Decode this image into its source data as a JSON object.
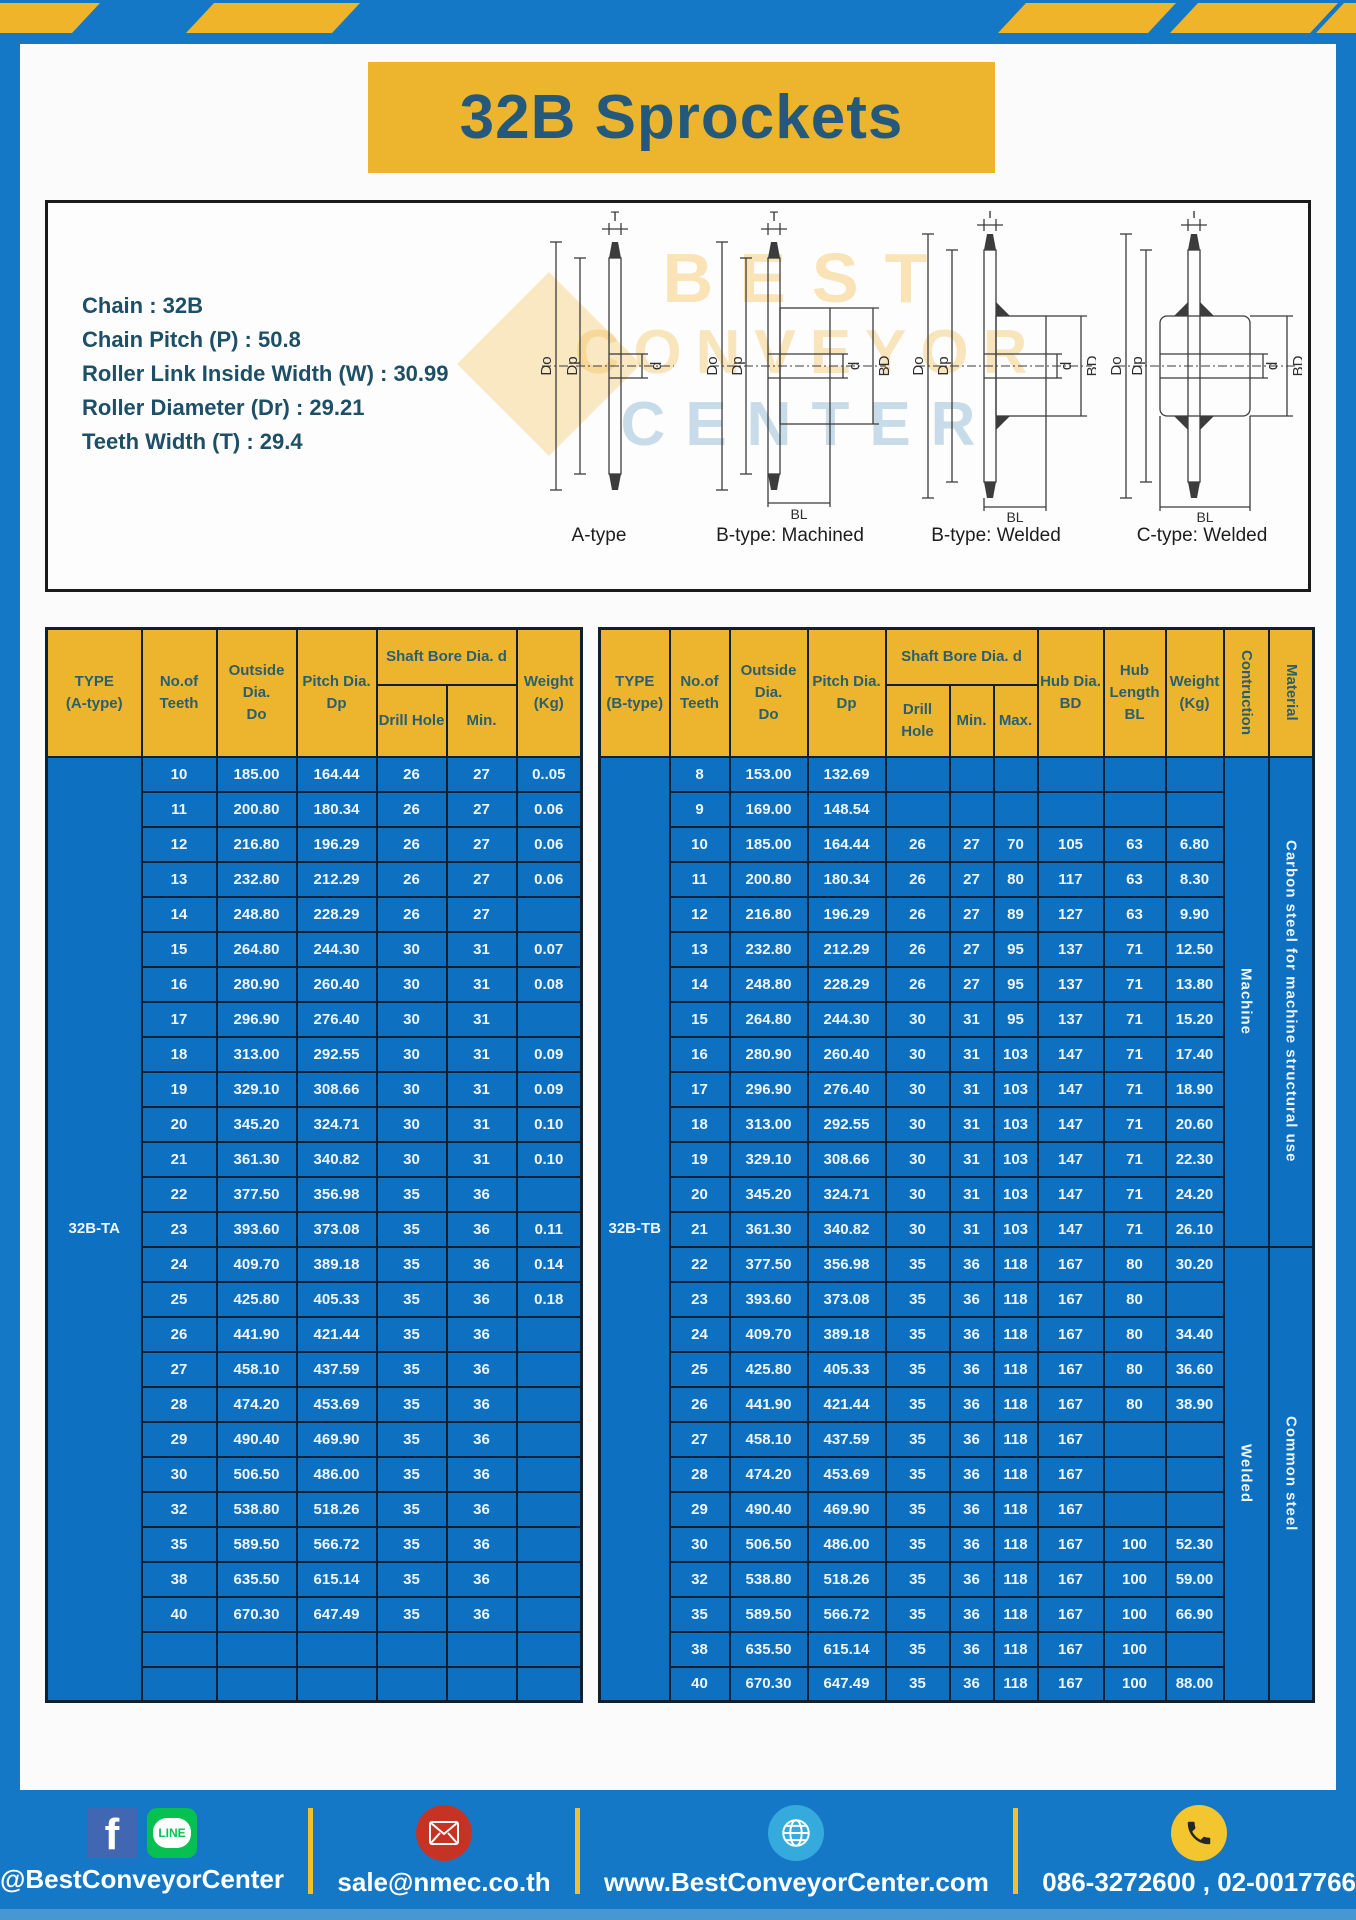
{
  "title": "32B Sprockets",
  "specs": [
    "Chain  : 32B",
    "Chain Pitch (P)  :  50.8",
    "Roller Link Inside Width (W)  :  30.99",
    "Roller Diameter (Dr)  : 29.21",
    "Teeth Width (T)  :  29.4"
  ],
  "watermark": {
    "line1": "BEST",
    "line2": "CONVEYOR",
    "line3": "CENTER"
  },
  "dims": {
    "t": "T",
    "outside": "Do",
    "pitch": "Dp",
    "bore": "d",
    "hub": "BD",
    "hublen": "BL"
  },
  "diagrams": [
    {
      "caption": "A-type"
    },
    {
      "caption": "B-type: Machined"
    },
    {
      "caption": "B-type: Welded"
    },
    {
      "caption": "C-type: Welded"
    }
  ],
  "colors": {
    "frame_blue": "#1478c6",
    "table_blue": "#0d70c0",
    "header_yellow": "#edb42d",
    "border_navy": "#0e2033"
  },
  "tables": {
    "left": {
      "headers": {
        "type": "TYPE\n(A-type)",
        "teeth": "No.of\nTeeth",
        "outside": "Outside\nDia.\nDo",
        "pitch": "Pitch Dia.\nDp",
        "shaft_bore": "Shaft Bore Dia. d",
        "drill": "Drill Hole",
        "min": "Min.",
        "weight": "Weight\n(Kg)"
      },
      "type_label": "32B-TA",
      "rows": [
        [
          "10",
          "185.00",
          "164.44",
          "26",
          "27",
          "0..05"
        ],
        [
          "11",
          "200.80",
          "180.34",
          "26",
          "27",
          "0.06"
        ],
        [
          "12",
          "216.80",
          "196.29",
          "26",
          "27",
          "0.06"
        ],
        [
          "13",
          "232.80",
          "212.29",
          "26",
          "27",
          "0.06"
        ],
        [
          "14",
          "248.80",
          "228.29",
          "26",
          "27",
          ""
        ],
        [
          "15",
          "264.80",
          "244.30",
          "30",
          "31",
          "0.07"
        ],
        [
          "16",
          "280.90",
          "260.40",
          "30",
          "31",
          "0.08"
        ],
        [
          "17",
          "296.90",
          "276.40",
          "30",
          "31",
          ""
        ],
        [
          "18",
          "313.00",
          "292.55",
          "30",
          "31",
          "0.09"
        ],
        [
          "19",
          "329.10",
          "308.66",
          "30",
          "31",
          "0.09"
        ],
        [
          "20",
          "345.20",
          "324.71",
          "30",
          "31",
          "0.10"
        ],
        [
          "21",
          "361.30",
          "340.82",
          "30",
          "31",
          "0.10"
        ],
        [
          "22",
          "377.50",
          "356.98",
          "35",
          "36",
          ""
        ],
        [
          "23",
          "393.60",
          "373.08",
          "35",
          "36",
          "0.11"
        ],
        [
          "24",
          "409.70",
          "389.18",
          "35",
          "36",
          "0.14"
        ],
        [
          "25",
          "425.80",
          "405.33",
          "35",
          "36",
          "0.18"
        ],
        [
          "26",
          "441.90",
          "421.44",
          "35",
          "36",
          ""
        ],
        [
          "27",
          "458.10",
          "437.59",
          "35",
          "36",
          ""
        ],
        [
          "28",
          "474.20",
          "453.69",
          "35",
          "36",
          ""
        ],
        [
          "29",
          "490.40",
          "469.90",
          "35",
          "36",
          ""
        ],
        [
          "30",
          "506.50",
          "486.00",
          "35",
          "36",
          ""
        ],
        [
          "32",
          "538.80",
          "518.26",
          "35",
          "36",
          ""
        ],
        [
          "35",
          "589.50",
          "566.72",
          "35",
          "36",
          ""
        ],
        [
          "38",
          "635.50",
          "615.14",
          "35",
          "36",
          ""
        ],
        [
          "40",
          "670.30",
          "647.49",
          "35",
          "36",
          ""
        ],
        [
          "",
          "",
          "",
          "",
          "",
          ""
        ],
        [
          "",
          "",
          "",
          "",
          "",
          ""
        ]
      ]
    },
    "right": {
      "headers": {
        "type": "TYPE\n(B-type)",
        "teeth": "No.of\nTeeth",
        "outside": "Outside\nDia.\nDo",
        "pitch": "Pitch Dia.\nDp",
        "shaft_bore": "Shaft Bore Dia. d",
        "drill": "Drill Hole",
        "min": "Min.",
        "max": "Max.",
        "hub_dia": "Hub Dia.\nBD",
        "hub_len": "Hub\nLength\nBL",
        "weight": "Weight\n(Kg)",
        "construction": "Contruction",
        "material": "Material"
      },
      "type_label": "32B-TB",
      "rows": [
        [
          "8",
          "153.00",
          "132.69",
          "",
          "",
          "",
          "",
          "",
          ""
        ],
        [
          "9",
          "169.00",
          "148.54",
          "",
          "",
          "",
          "",
          "",
          ""
        ],
        [
          "10",
          "185.00",
          "164.44",
          "26",
          "27",
          "70",
          "105",
          "63",
          "6.80"
        ],
        [
          "11",
          "200.80",
          "180.34",
          "26",
          "27",
          "80",
          "117",
          "63",
          "8.30"
        ],
        [
          "12",
          "216.80",
          "196.29",
          "26",
          "27",
          "89",
          "127",
          "63",
          "9.90"
        ],
        [
          "13",
          "232.80",
          "212.29",
          "26",
          "27",
          "95",
          "137",
          "71",
          "12.50"
        ],
        [
          "14",
          "248.80",
          "228.29",
          "26",
          "27",
          "95",
          "137",
          "71",
          "13.80"
        ],
        [
          "15",
          "264.80",
          "244.30",
          "30",
          "31",
          "95",
          "137",
          "71",
          "15.20"
        ],
        [
          "16",
          "280.90",
          "260.40",
          "30",
          "31",
          "103",
          "147",
          "71",
          "17.40"
        ],
        [
          "17",
          "296.90",
          "276.40",
          "30",
          "31",
          "103",
          "147",
          "71",
          "18.90"
        ],
        [
          "18",
          "313.00",
          "292.55",
          "30",
          "31",
          "103",
          "147",
          "71",
          "20.60"
        ],
        [
          "19",
          "329.10",
          "308.66",
          "30",
          "31",
          "103",
          "147",
          "71",
          "22.30"
        ],
        [
          "20",
          "345.20",
          "324.71",
          "30",
          "31",
          "103",
          "147",
          "71",
          "24.20"
        ],
        [
          "21",
          "361.30",
          "340.82",
          "30",
          "31",
          "103",
          "147",
          "71",
          "26.10"
        ],
        [
          "22",
          "377.50",
          "356.98",
          "35",
          "36",
          "118",
          "167",
          "80",
          "30.20"
        ],
        [
          "23",
          "393.60",
          "373.08",
          "35",
          "36",
          "118",
          "167",
          "80",
          ""
        ],
        [
          "24",
          "409.70",
          "389.18",
          "35",
          "36",
          "118",
          "167",
          "80",
          "34.40"
        ],
        [
          "25",
          "425.80",
          "405.33",
          "35",
          "36",
          "118",
          "167",
          "80",
          "36.60"
        ],
        [
          "26",
          "441.90",
          "421.44",
          "35",
          "36",
          "118",
          "167",
          "80",
          "38.90"
        ],
        [
          "27",
          "458.10",
          "437.59",
          "35",
          "36",
          "118",
          "167",
          "",
          ""
        ],
        [
          "28",
          "474.20",
          "453.69",
          "35",
          "36",
          "118",
          "167",
          "",
          ""
        ],
        [
          "29",
          "490.40",
          "469.90",
          "35",
          "36",
          "118",
          "167",
          "",
          ""
        ],
        [
          "30",
          "506.50",
          "486.00",
          "35",
          "36",
          "118",
          "167",
          "100",
          "52.30"
        ],
        [
          "32",
          "538.80",
          "518.26",
          "35",
          "36",
          "118",
          "167",
          "100",
          "59.00"
        ],
        [
          "35",
          "589.50",
          "566.72",
          "35",
          "36",
          "118",
          "167",
          "100",
          "66.90"
        ],
        [
          "38",
          "635.50",
          "615.14",
          "35",
          "36",
          "118",
          "167",
          "100",
          ""
        ],
        [
          "40",
          "670.30",
          "647.49",
          "35",
          "36",
          "118",
          "167",
          "100",
          "88.00"
        ]
      ],
      "sections": [
        {
          "start": 0,
          "span": 14,
          "construction": "Machine",
          "material": "Carbon steel  for  machine  structural  use"
        },
        {
          "start": 14,
          "span": 13,
          "construction": "Welded",
          "material": "Common steel"
        }
      ]
    }
  },
  "footer": {
    "facebook_label": "f",
    "line_label": "LINE",
    "social_handle": "@BestConveyorCenter",
    "email": "sale@nmec.co.th",
    "website": "www.BestConveyorCenter.com",
    "phones": "086-3272600 , 02-0017766"
  }
}
